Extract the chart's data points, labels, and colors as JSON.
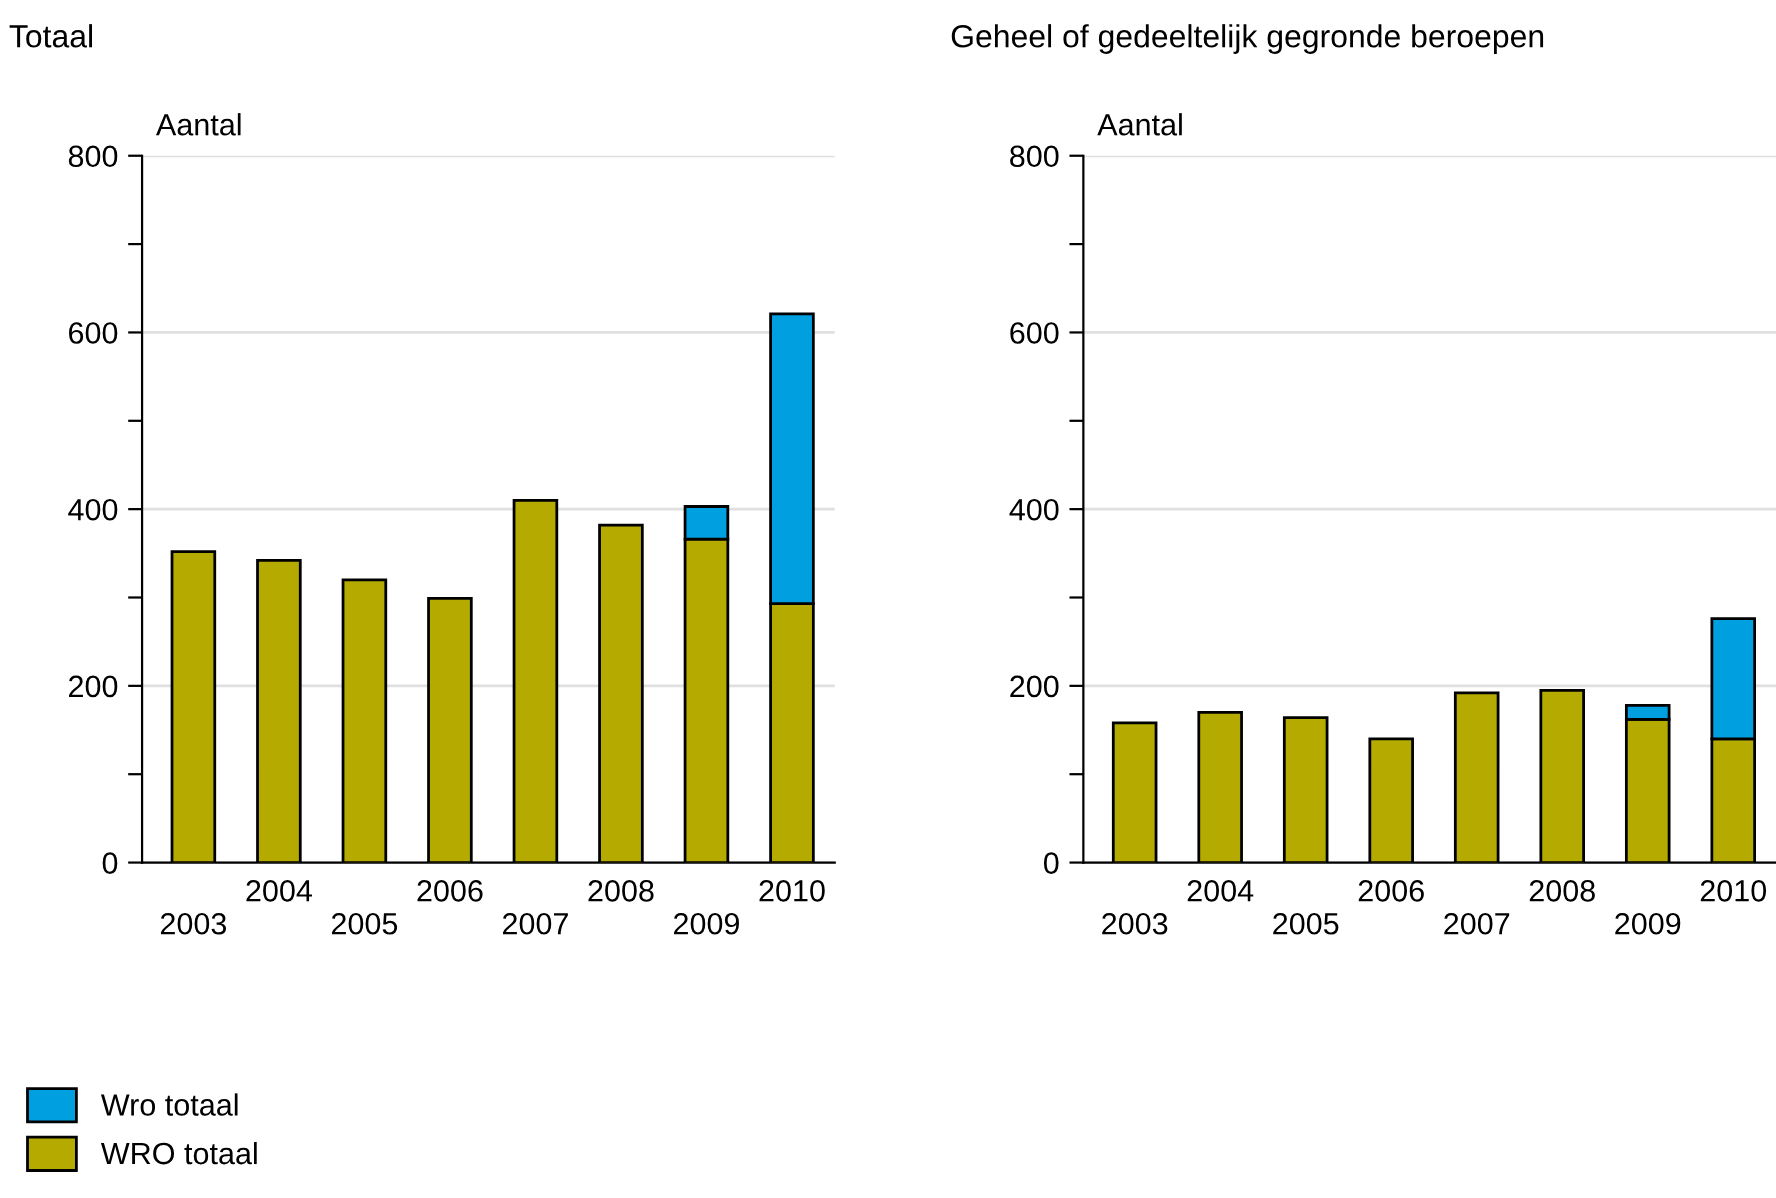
{
  "chart_data": [
    {
      "type": "bar",
      "title": "Totaal",
      "ylabel": "Aantal",
      "stacked": true,
      "grid": "y",
      "legend": "bottom left",
      "categories": [
        "2003",
        "2004",
        "2005",
        "2006",
        "2007",
        "2008",
        "2009",
        "2010"
      ],
      "series": [
        {
          "name": "WRO totaal",
          "color": "#b5ab00",
          "values": [
            352,
            342,
            320,
            299,
            410,
            382,
            366,
            293
          ]
        },
        {
          "name": "Wro totaal",
          "color": "#009fdf",
          "values": [
            null,
            null,
            null,
            null,
            null,
            null,
            37,
            328
          ]
        }
      ],
      "ylim": [
        0,
        800
      ],
      "yticks": [
        0,
        {
          "value": 100,
          "label": null
        },
        200,
        {
          "value": 300,
          "label": null
        },
        400,
        {
          "value": 500,
          "label": null
        },
        600,
        {
          "value": 700,
          "label": null
        },
        800
      ]
    },
    {
      "type": "bar",
      "title": "Geheel of gedeeltelijk gegronde beroepen",
      "ylabel": "Aantal",
      "stacked": true,
      "grid": "y",
      "categories": [
        "2003",
        "2004",
        "2005",
        "2006",
        "2007",
        "2008",
        "2009",
        "2010"
      ],
      "series": [
        {
          "color": "#b5ab00",
          "values": [
            158,
            170,
            164,
            140,
            192,
            195,
            162,
            140
          ]
        },
        {
          "color": "#009fdf",
          "values": [
            null,
            null,
            null,
            null,
            null,
            null,
            16,
            136
          ]
        }
      ],
      "ylim": [
        0,
        800
      ],
      "yticks": [
        0,
        {
          "value": 100,
          "label": null
        },
        200,
        {
          "value": 300,
          "label": null
        },
        400,
        {
          "value": 500,
          "label": null
        },
        600,
        {
          "value": 700,
          "label": null
        },
        800
      ]
    }
  ]
}
